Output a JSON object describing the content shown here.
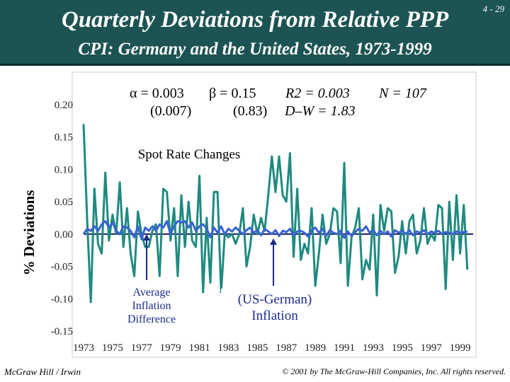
{
  "slide": {
    "title": "Quarterly Deviations from Relative PPP",
    "subtitle": "CPI: Germany and the United States, 1973-1999",
    "slide_number": "4 - 29",
    "footer_left": "McGraw Hill / Irwin",
    "footer_right": "© 2001 by The McGraw-Hill Companies, Inc. All rights reserved."
  },
  "stats": {
    "alpha": "α = 0.003",
    "beta": "β = 0.15",
    "r2": "R2 = 0.003",
    "n": "N = 107",
    "alpha_se": "(0.007)",
    "beta_se": "(0.83)",
    "dw": "D–W = 1.83"
  },
  "colors": {
    "spot_series": "#1f8a80",
    "inflation_series": "#3a63d0",
    "zero_line": "#1a1a66",
    "annotation": "#1a2a8a",
    "header_bg": "#1d5353"
  },
  "chart_data": {
    "type": "line",
    "title": "Quarterly Deviations from Relative PPP",
    "ylabel": "% Deviations",
    "xlabel": "",
    "ylim": [
      -0.15,
      0.2
    ],
    "xlim": [
      1973,
      1999.9
    ],
    "y_ticks": [
      -0.15,
      -0.1,
      -0.05,
      0.0,
      0.05,
      0.1,
      0.15,
      0.2
    ],
    "y_tick_labels": [
      "-0.15",
      "-0.10",
      "-0.05",
      "0.00",
      "0.05",
      "0.10",
      "0.15",
      "0.20"
    ],
    "x_ticks": [
      1973,
      1975,
      1977,
      1979,
      1981,
      1983,
      1985,
      1987,
      1989,
      1991,
      1993,
      1995,
      1997,
      1999
    ],
    "x_tick_labels": [
      "1973",
      "1975",
      "1977",
      "1979",
      "1981",
      "1983",
      "1985",
      "1987",
      "1989",
      "1991",
      "1993",
      "1995",
      "1997",
      "1999"
    ],
    "series": [
      {
        "name": "Spot Rate Changes",
        "x_start": 1973.0,
        "x_step": 0.25,
        "values": [
          0.17,
          0.02,
          -0.105,
          0.07,
          -0.015,
          -0.03,
          0.095,
          -0.01,
          0.03,
          0.0,
          0.08,
          -0.02,
          0.04,
          -0.03,
          -0.065,
          0.035,
          0.0,
          -0.02,
          -0.02,
          0.005,
          0.015,
          -0.065,
          0.07,
          0.065,
          -0.01,
          0.04,
          -0.065,
          0.06,
          -0.02,
          0.05,
          -0.01,
          -0.02,
          0.09,
          -0.09,
          0.025,
          -0.075,
          0.065,
          0.065,
          -0.09,
          0.0,
          -0.005,
          0.0,
          -0.015,
          0.0,
          0.04,
          -0.05,
          -0.02,
          0.03,
          0.0,
          0.025,
          0.005,
          0.06,
          0.12,
          0.065,
          0.12,
          0.06,
          0.05,
          0.125,
          -0.035,
          0.07,
          -0.04,
          -0.015,
          -0.03,
          0.04,
          -0.08,
          -0.03,
          0.03,
          -0.015,
          0.0,
          0.04,
          0.035,
          -0.045,
          0.11,
          -0.08,
          -0.005,
          0.01,
          0.04,
          -0.07,
          -0.04,
          -0.055,
          0.03,
          -0.095,
          0.045,
          0.005,
          0.04,
          0.035,
          -0.06,
          -0.035,
          0.02,
          -0.03,
          0.02,
          0.03,
          -0.03,
          -0.01,
          0.04,
          -0.015,
          0.0,
          -0.01,
          0.045,
          0.04,
          -0.085,
          0.05,
          -0.04,
          0.06,
          -0.03,
          0.045,
          -0.055
        ]
      },
      {
        "name": "Inflation Difference",
        "x_start": 1973.0,
        "x_step": 0.25,
        "values": [
          0.0,
          0.008,
          0.005,
          0.012,
          0.005,
          0.015,
          0.02,
          0.01,
          0.018,
          0.005,
          0.0,
          0.012,
          0.01,
          0.005,
          -0.005,
          0.012,
          -0.008,
          0.01,
          0.005,
          0.012,
          0.005,
          0.015,
          0.01,
          0.02,
          0.0,
          0.012,
          0.02,
          0.018,
          0.02,
          0.01,
          0.018,
          0.005,
          0.012,
          0.015,
          0.008,
          -0.005,
          0.01,
          0.002,
          0.012,
          0.0,
          0.008,
          0.004,
          0.01,
          0.005,
          0.0,
          0.006,
          0.01,
          0.002,
          0.006,
          -0.002,
          0.008,
          0.004,
          0.0,
          0.006,
          -0.003,
          0.005,
          0.003,
          0.008,
          -0.002,
          0.004,
          0.005,
          0.002,
          -0.004,
          0.006,
          0.01,
          0.002,
          0.008,
          -0.003,
          0.006,
          0.002,
          0.0,
          0.005,
          -0.006,
          0.004,
          -0.003,
          0.003,
          0.008,
          0.005,
          0.012,
          0.002,
          0.006,
          -0.002,
          0.005,
          0.0,
          0.004,
          -0.004,
          0.006,
          0.002,
          0.005,
          0.0,
          0.006,
          -0.002,
          0.004,
          0.002,
          0.006,
          0.0,
          0.004,
          0.002,
          0.005,
          0.0,
          0.003,
          0.002,
          0.0,
          0.004,
          0.002,
          0.003,
          0.004
        ]
      }
    ],
    "annotations": [
      {
        "name": "spot-rate-label",
        "text": "Spot Rate Changes"
      },
      {
        "name": "avg-inflation-label",
        "text_lines": [
          "Average",
          "Inflation",
          "Difference"
        ]
      },
      {
        "name": "us-german-inflation-label",
        "text_lines": [
          "(US-German)",
          "Inflation"
        ]
      }
    ]
  }
}
